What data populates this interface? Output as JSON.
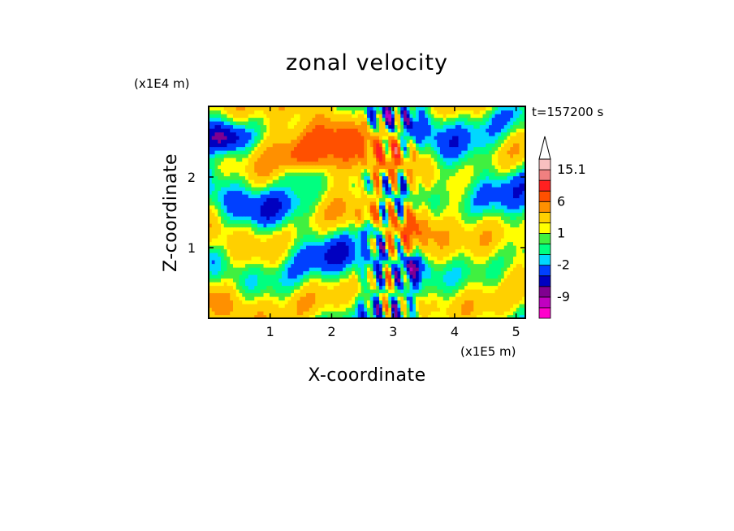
{
  "chart_data": {
    "type": "heatmap",
    "title": "zonal velocity",
    "xlabel": "X-coordinate",
    "ylabel": "Z-coordinate",
    "x_multiplier": "(x1E5 m)",
    "y_multiplier": "(x1E4 m)",
    "time_label": "t=157200 s",
    "xlim": [
      0,
      5.15
    ],
    "ylim": [
      0,
      3.0
    ],
    "x_ticks": [
      1,
      2,
      3,
      4,
      5
    ],
    "y_ticks": [
      1,
      2
    ],
    "colorbar": {
      "levels": [
        -15,
        -12,
        -9,
        -6,
        -4,
        -2,
        -1,
        0,
        1,
        2,
        4,
        6,
        9,
        12,
        15.1
      ],
      "labels": [
        "15.1",
        "6",
        "1",
        "-2",
        "-9"
      ],
      "label_values": [
        15.1,
        6,
        1,
        -2,
        -9
      ],
      "colors": [
        "#ff00cc",
        "#c000c0",
        "#800090",
        "#0000c0",
        "#0040ff",
        "#00d8ff",
        "#00ff80",
        "#40f040",
        "#ffff00",
        "#ffd000",
        "#ff9000",
        "#ff5000",
        "#ff2020",
        "#f08080",
        "#f8c0c0"
      ],
      "extend": "max"
    }
  }
}
